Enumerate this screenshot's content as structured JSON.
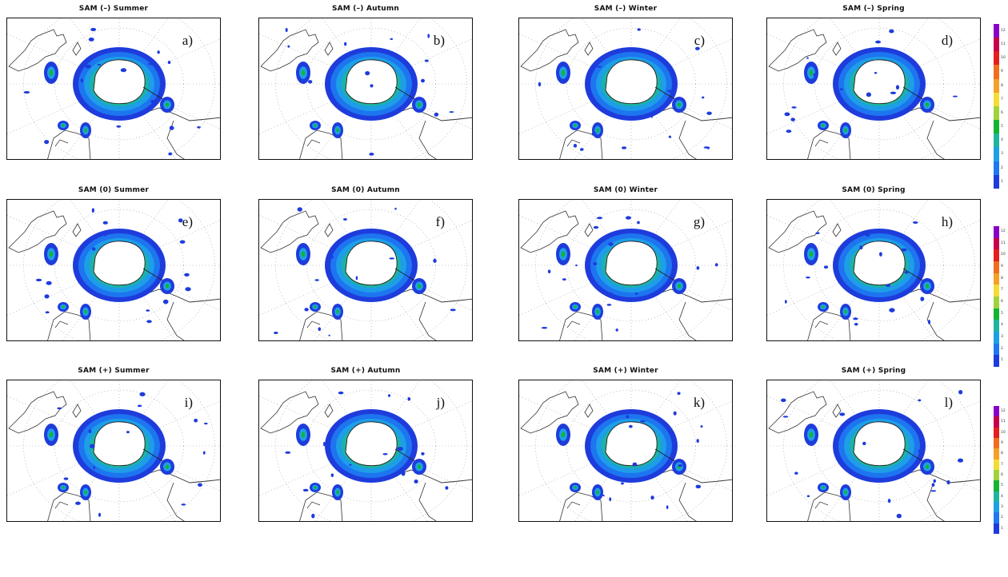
{
  "panels": [
    {
      "title": "SAM (–) Summer",
      "label": "a)"
    },
    {
      "title": "SAM (–) Autumn",
      "label": "b)"
    },
    {
      "title": "SAM (–) Winter",
      "label": "c)"
    },
    {
      "title": "SAM (–) Spring",
      "label": "d)"
    },
    {
      "title": "SAM (0) Summer",
      "label": "e)"
    },
    {
      "title": "SAM (0) Autumn",
      "label": "f)"
    },
    {
      "title": "SAM (0) Winter",
      "label": "g)"
    },
    {
      "title": "SAM (0) Spring",
      "label": "h)"
    },
    {
      "title": "SAM (+) Summer",
      "label": "i)"
    },
    {
      "title": "SAM (+) Autumn",
      "label": "j)"
    },
    {
      "title": "SAM (+) Winter",
      "label": "k)"
    },
    {
      "title": "SAM (+) Spring",
      "label": "l)"
    }
  ],
  "colorbar": {
    "ticks": [
      "12",
      "11",
      "10",
      "9",
      "8",
      "7",
      "6",
      "5",
      "4",
      "3",
      "2",
      "1"
    ],
    "colors": [
      "#8b00c8",
      "#c8004b",
      "#e61e1e",
      "#f06e1e",
      "#f5a028",
      "#f5dc32",
      "#a0d23c",
      "#14b432",
      "#1eb4a0",
      "#1ea0e6",
      "#1e78f0",
      "#1e3cdc"
    ]
  }
}
